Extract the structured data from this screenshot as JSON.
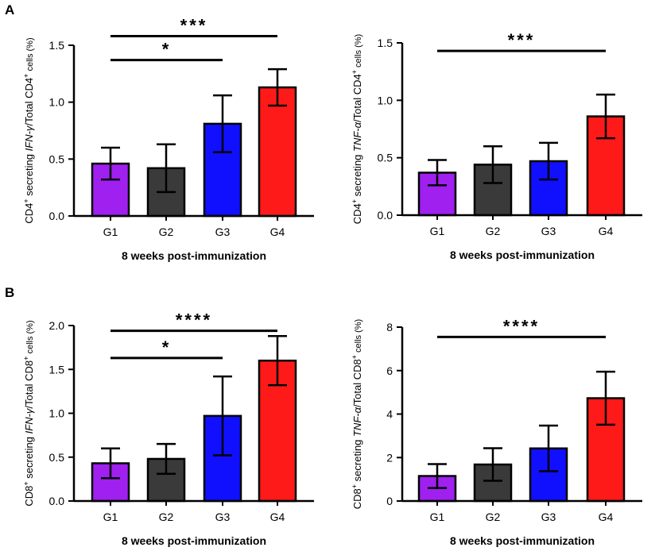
{
  "panels": [
    {
      "id": "A",
      "label": "A"
    },
    {
      "id": "B",
      "label": "B"
    }
  ],
  "colors": {
    "G1": "#a020f0",
    "G2": "#3a3a3a",
    "G3": "#1010ff",
    "G4": "#ff1a1a"
  },
  "chart_data": [
    {
      "type": "bar",
      "panel": "A",
      "categories": [
        "G1",
        "G2",
        "G3",
        "G4"
      ],
      "values": [
        0.46,
        0.42,
        0.81,
        1.13
      ],
      "errors": [
        0.14,
        0.21,
        0.25,
        0.16
      ],
      "ylim": [
        0,
        1.5
      ],
      "yticks": [
        "0.0",
        "0.5",
        "1.0",
        "1.5"
      ],
      "ytick_values": [
        0,
        0.5,
        1.0,
        1.5
      ],
      "xlabel": "8 weeks post-immunization",
      "ylabel": {
        "pre": "CD4",
        "sup1": "+",
        "mid": " secreting ",
        "ital": "IFN-γ",
        "post": "/Total CD4",
        "sup2": "+",
        "end": " cells (%)"
      },
      "significance": [
        {
          "from": "G1",
          "to": "G4",
          "label": "***",
          "level": 1.58
        },
        {
          "from": "G1",
          "to": "G3",
          "label": "*",
          "level": 1.37
        }
      ]
    },
    {
      "type": "bar",
      "panel": "A",
      "categories": [
        "G1",
        "G2",
        "G3",
        "G4"
      ],
      "values": [
        0.37,
        0.44,
        0.47,
        0.86
      ],
      "errors": [
        0.11,
        0.16,
        0.16,
        0.19
      ],
      "ylim": [
        0,
        1.5
      ],
      "yticks": [
        "0.0",
        "0.5",
        "1.0",
        "1.5"
      ],
      "ytick_values": [
        0,
        0.5,
        1.0,
        1.5
      ],
      "xlabel": "8 weeks post-immunization",
      "ylabel": {
        "pre": "CD4",
        "sup1": "+",
        "mid": " secreting ",
        "ital": "TNF-α",
        "post": "/Total CD4",
        "sup2": "+",
        "end": " cells (%)"
      },
      "significance": [
        {
          "from": "G1",
          "to": "G4",
          "label": "***",
          "level": 1.43
        }
      ]
    },
    {
      "type": "bar",
      "panel": "B",
      "categories": [
        "G1",
        "G2",
        "G3",
        "G4"
      ],
      "values": [
        0.43,
        0.48,
        0.97,
        1.6
      ],
      "errors": [
        0.17,
        0.17,
        0.45,
        0.28
      ],
      "ylim": [
        0,
        2.0
      ],
      "yticks": [
        "0.0",
        "0.5",
        "1.0",
        "1.5",
        "2.0"
      ],
      "ytick_values": [
        0,
        0.5,
        1.0,
        1.5,
        2.0
      ],
      "xlabel": "8 weeks post-immunization",
      "ylabel": {
        "pre": "CD8",
        "sup1": "+",
        "mid": " secreting ",
        "ital": "IFN-γ",
        "post": "/Total CD8",
        "sup2": "+",
        "end": " cells (%)"
      },
      "significance": [
        {
          "from": "G1",
          "to": "G4",
          "label": "****",
          "level": 1.94
        },
        {
          "from": "G1",
          "to": "G3",
          "label": "*",
          "level": 1.63
        }
      ]
    },
    {
      "type": "bar",
      "panel": "B",
      "categories": [
        "G1",
        "G2",
        "G3",
        "G4"
      ],
      "values": [
        1.15,
        1.68,
        2.42,
        4.73
      ],
      "errors": [
        0.55,
        0.75,
        1.05,
        1.22
      ],
      "ylim": [
        0,
        8
      ],
      "yticks": [
        "0",
        "2",
        "4",
        "6",
        "8"
      ],
      "ytick_values": [
        0,
        2,
        4,
        6,
        8
      ],
      "xlabel": "8 weeks post-immunization",
      "ylabel": {
        "pre": "CD8",
        "sup1": "+",
        "mid": " secreting ",
        "ital": "TNF-α",
        "post": "/Total CD8",
        "sup2": "+",
        "end": " cells (%)"
      },
      "significance": [
        {
          "from": "G1",
          "to": "G4",
          "label": "****",
          "level": 7.55
        }
      ]
    }
  ]
}
